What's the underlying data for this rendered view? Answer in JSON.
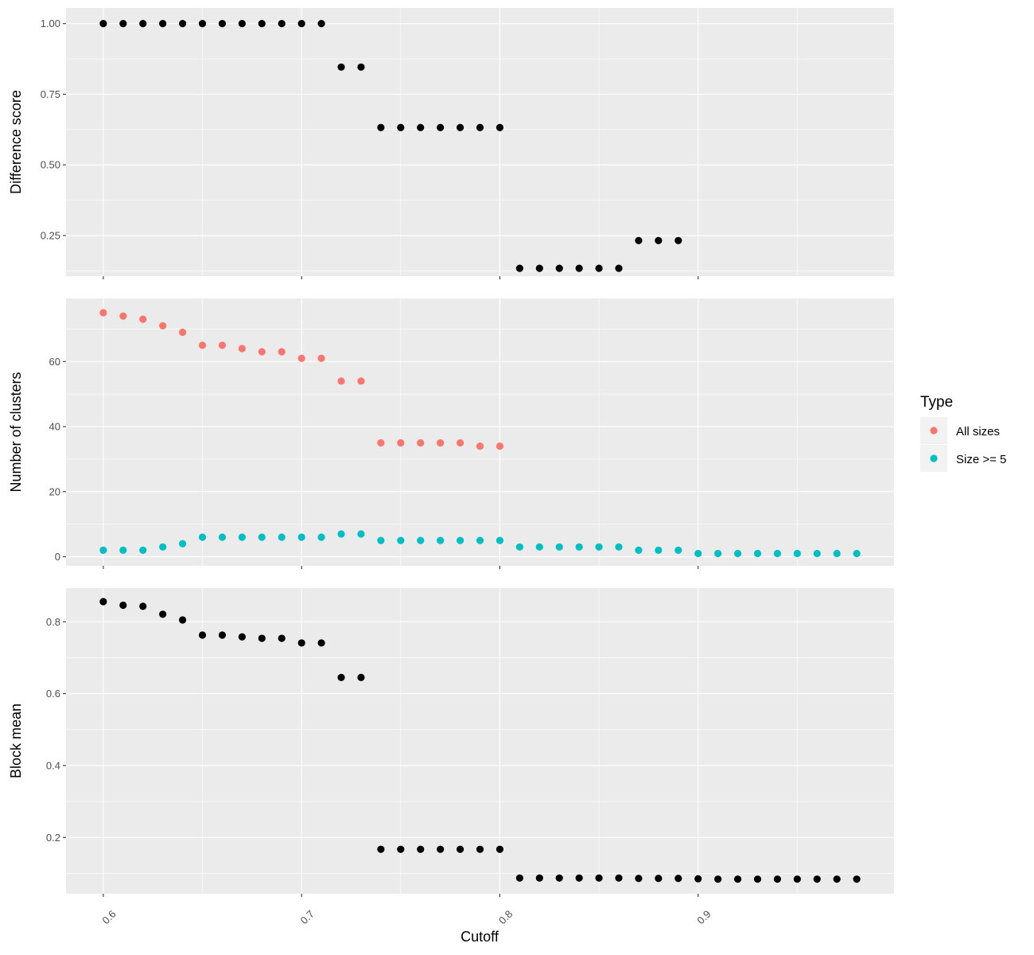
{
  "chart_data": {
    "type": "scatter",
    "xlabel": "Cutoff",
    "x_ticks": [
      0.6,
      0.7,
      0.8,
      0.9
    ],
    "x_tick_labels": [
      "0.6",
      "0.7",
      "0.8",
      "0.9"
    ],
    "xlim": [
      0.5812,
      0.9988
    ],
    "legend": {
      "title": "Type",
      "placement": "right",
      "entries": [
        {
          "label": "All sizes",
          "color": "#F8766D"
        },
        {
          "label": "Size >= 5",
          "color": "#00BFC4"
        }
      ]
    },
    "panels": [
      {
        "ylabel": "Difference score",
        "ylim": [
          0.1061,
          1.0553
        ],
        "y_ticks": [
          0.25,
          0.5,
          0.75,
          1.0
        ],
        "y_tick_labels": [
          "0.25",
          "0.50",
          "0.75",
          "1.00"
        ],
        "series": [
          {
            "color": "#000000",
            "x": [
              0.6,
              0.61,
              0.62,
              0.63,
              0.64,
              0.65,
              0.66,
              0.67,
              0.68,
              0.69,
              0.7,
              0.71,
              0.72,
              0.73,
              0.74,
              0.75,
              0.76,
              0.77,
              0.78,
              0.79,
              0.8,
              0.81,
              0.82,
              0.83,
              0.84,
              0.85,
              0.86,
              0.87,
              0.88,
              0.89
            ],
            "y": [
              1.0,
              1.0,
              1.0,
              1.0,
              1.0,
              1.0,
              1.0,
              1.0,
              1.0,
              1.0,
              1.0,
              1.0,
              0.846,
              0.846,
              0.632,
              0.632,
              0.632,
              0.632,
              0.632,
              0.632,
              0.632,
              0.134,
              0.134,
              0.134,
              0.134,
              0.134,
              0.134,
              0.232,
              0.232,
              0.232
            ]
          }
        ]
      },
      {
        "ylabel": "Number of clusters",
        "ylim": [
          -2.8,
          79.4
        ],
        "y_ticks": [
          0,
          20,
          40,
          60
        ],
        "y_tick_labels": [
          "0",
          "20",
          "40",
          "60"
        ],
        "series": [
          {
            "name": "All sizes",
            "color": "#F8766D",
            "x": [
              0.6,
              0.61,
              0.62,
              0.63,
              0.64,
              0.65,
              0.66,
              0.67,
              0.68,
              0.69,
              0.7,
              0.71,
              0.72,
              0.73,
              0.74,
              0.75,
              0.76,
              0.77,
              0.78,
              0.79,
              0.8
            ],
            "y": [
              75,
              74,
              73,
              71,
              69,
              65,
              65,
              64,
              63,
              63,
              61,
              61,
              54,
              54,
              35,
              35,
              35,
              35,
              35,
              34,
              34
            ]
          },
          {
            "name": "Size >= 5",
            "color": "#00BFC4",
            "x": [
              0.6,
              0.61,
              0.62,
              0.63,
              0.64,
              0.65,
              0.66,
              0.67,
              0.68,
              0.69,
              0.7,
              0.71,
              0.72,
              0.73,
              0.74,
              0.75,
              0.76,
              0.77,
              0.78,
              0.79,
              0.8,
              0.81,
              0.82,
              0.83,
              0.84,
              0.85,
              0.86,
              0.87,
              0.88,
              0.89,
              0.9,
              0.91,
              0.92,
              0.93,
              0.94,
              0.95,
              0.96,
              0.97,
              0.98
            ],
            "y": [
              2,
              2,
              2,
              3,
              4,
              6,
              6,
              6,
              6,
              6,
              6,
              6,
              7,
              7,
              5,
              5,
              5,
              5,
              5,
              5,
              5,
              3,
              3,
              3,
              3,
              3,
              3,
              2,
              2,
              2,
              1,
              1,
              1,
              1,
              1,
              1,
              1,
              1,
              1
            ]
          }
        ]
      },
      {
        "ylabel": "Block mean",
        "ylim": [
          0.0434,
          0.8936
        ],
        "y_ticks": [
          0.2,
          0.4,
          0.6,
          0.8
        ],
        "y_tick_labels": [
          "0.2",
          "0.4",
          "0.6",
          "0.8"
        ],
        "series": [
          {
            "color": "#000000",
            "x": [
              0.6,
              0.61,
              0.62,
              0.63,
              0.64,
              0.65,
              0.66,
              0.67,
              0.68,
              0.69,
              0.7,
              0.71,
              0.72,
              0.73,
              0.74,
              0.75,
              0.76,
              0.77,
              0.78,
              0.79,
              0.8,
              0.81,
              0.82,
              0.83,
              0.84,
              0.85,
              0.86,
              0.87,
              0.88,
              0.89,
              0.9,
              0.91,
              0.92,
              0.93,
              0.94,
              0.95,
              0.96,
              0.97,
              0.98
            ],
            "y": [
              0.856,
              0.846,
              0.843,
              0.821,
              0.805,
              0.763,
              0.763,
              0.758,
              0.754,
              0.754,
              0.741,
              0.741,
              0.645,
              0.645,
              0.167,
              0.167,
              0.167,
              0.167,
              0.167,
              0.167,
              0.167,
              0.087,
              0.087,
              0.087,
              0.087,
              0.087,
              0.087,
              0.086,
              0.086,
              0.086,
              0.085,
              0.084,
              0.084,
              0.084,
              0.084,
              0.084,
              0.084,
              0.084,
              0.084
            ]
          }
        ]
      }
    ]
  }
}
